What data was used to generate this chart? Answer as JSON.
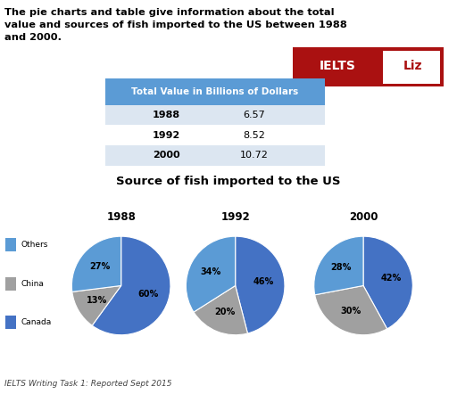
{
  "title_text": "The pie charts and table give information about the total\nvalue and sources of fish imported to the US between 1988\nand 2000.",
  "table_header": "Total Value in Billions of Dollars",
  "table_rows": [
    [
      "1988",
      "6.57"
    ],
    [
      "1992",
      "8.52"
    ],
    [
      "2000",
      "10.72"
    ]
  ],
  "table_header_color": "#5b9bd5",
  "table_row_colors": [
    "#dce6f1",
    "#ffffff",
    "#dce6f1"
  ],
  "pie_title": "Source of fish imported to the US",
  "pie_years": [
    "1988",
    "1992",
    "2000"
  ],
  "pie_data": [
    [
      60,
      13,
      27
    ],
    [
      46,
      20,
      34
    ],
    [
      42,
      30,
      28
    ]
  ],
  "pie_labels": [
    [
      "60%",
      "13%",
      "27%"
    ],
    [
      "46%",
      "20%",
      "34%"
    ],
    [
      "42%",
      "30%",
      "28%"
    ]
  ],
  "pie_colors": [
    "#4472c4",
    "#a0a0a0",
    "#5b9bd5"
  ],
  "legend_labels": [
    "Others",
    "China",
    "Canada"
  ],
  "legend_colors": [
    "#5b9bd5",
    "#a0a0a0",
    "#4472c4"
  ],
  "footer_text": "IELTS Writing Task 1: Reported Sept 2015",
  "ielts_bg": "#aa1111",
  "ielts_text": "IELTS",
  "liz_text": "Liz"
}
